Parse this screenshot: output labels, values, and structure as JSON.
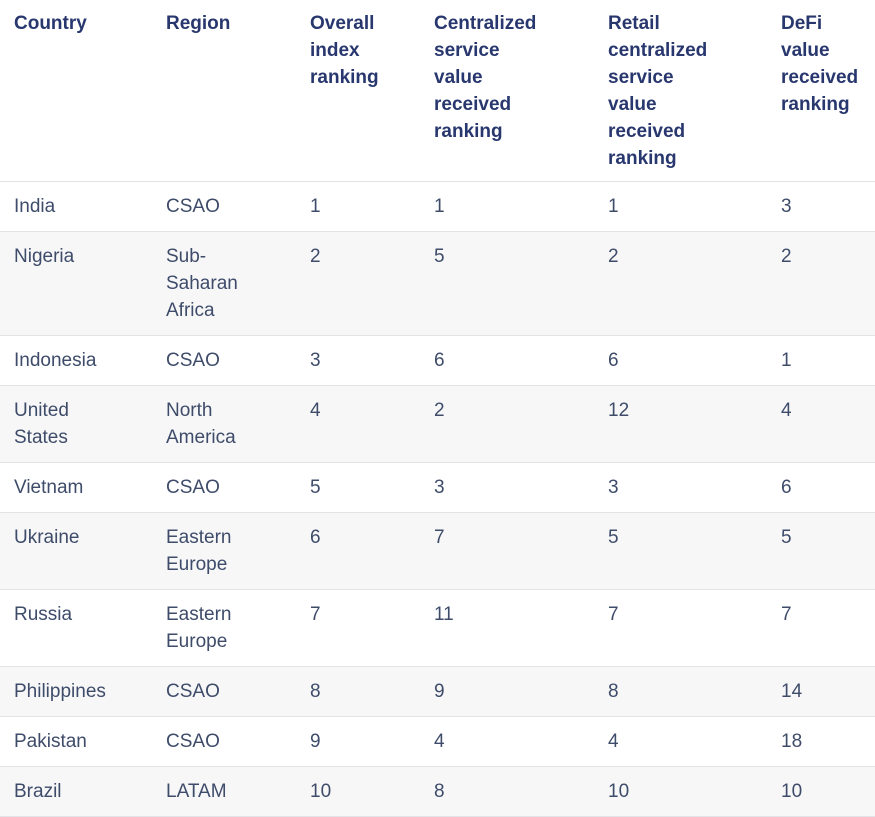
{
  "chart_data": {
    "type": "table",
    "columns": [
      "Country",
      "Region",
      "Overall index ranking",
      "Centralized service value received ranking",
      "Retail centralized service value received ranking",
      "DeFi value received ranking"
    ],
    "rows": [
      [
        "India",
        "CSAO",
        1,
        1,
        1,
        3
      ],
      [
        "Nigeria",
        "Sub-Saharan Africa",
        2,
        5,
        2,
        2
      ],
      [
        "Indonesia",
        "CSAO",
        3,
        6,
        6,
        1
      ],
      [
        "United States",
        "North America",
        4,
        2,
        12,
        4
      ],
      [
        "Vietnam",
        "CSAO",
        5,
        3,
        3,
        6
      ],
      [
        "Ukraine",
        "Eastern Europe",
        6,
        7,
        5,
        5
      ],
      [
        "Russia",
        "Eastern Europe",
        7,
        11,
        7,
        7
      ],
      [
        "Philippines",
        "CSAO",
        8,
        9,
        8,
        14
      ],
      [
        "Pakistan",
        "CSAO",
        9,
        4,
        4,
        18
      ],
      [
        "Brazil",
        "LATAM",
        10,
        8,
        10,
        10
      ]
    ],
    "layout_hints": {
      "striped_rows": "even rows shaded",
      "header_position": "top",
      "last_row_clipped": true
    }
  },
  "colors": {
    "header_text": "#28376e",
    "body_text": "#3e4c6a",
    "row_stripe": "#f7f7f8",
    "row_border": "#e2e3e7",
    "background": "#ffffff"
  }
}
